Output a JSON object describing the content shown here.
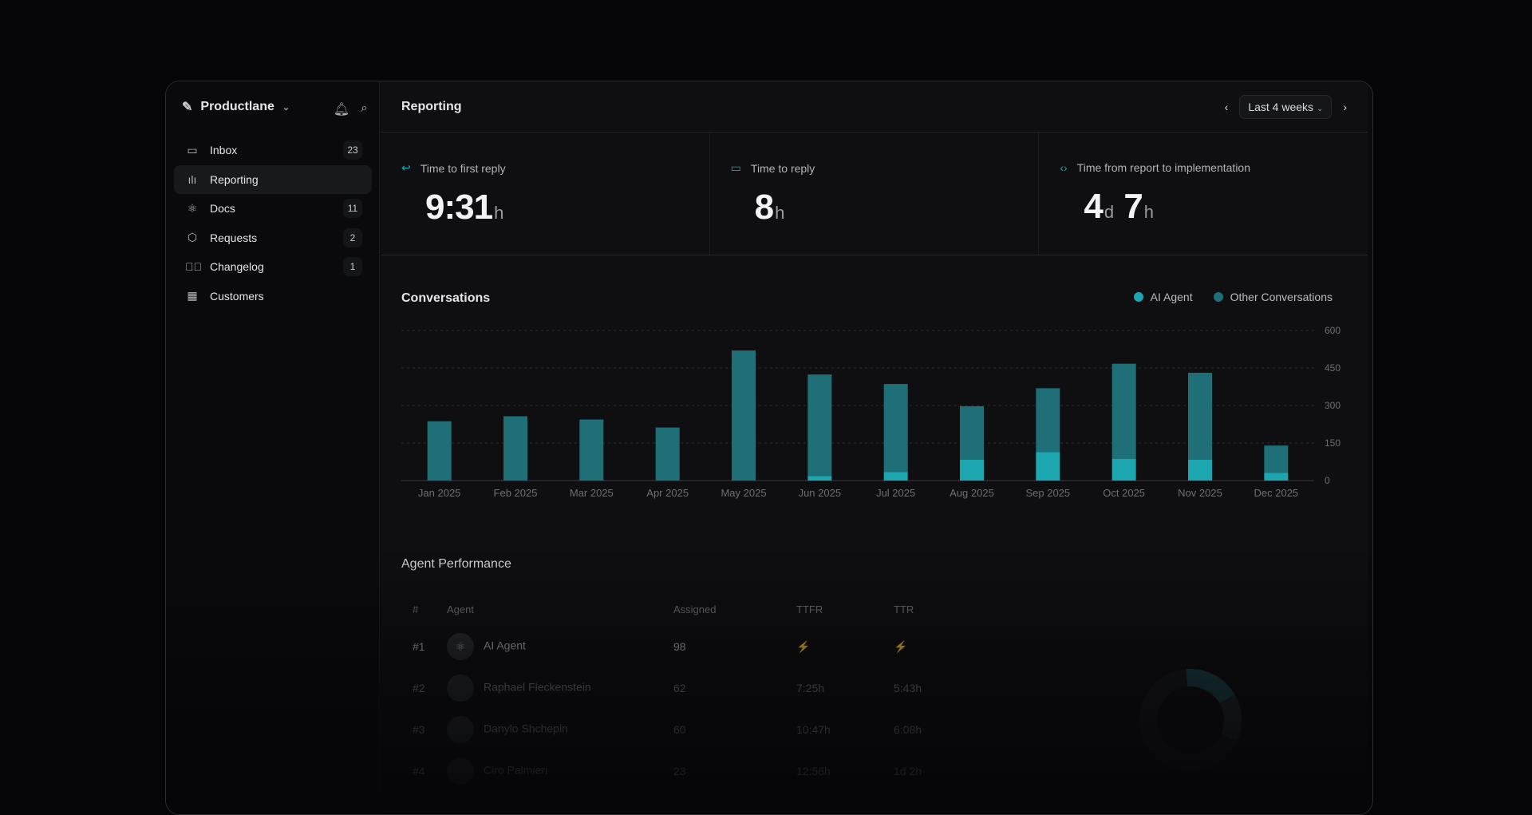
{
  "sidebar": {
    "workspace": "Productlane",
    "items": [
      {
        "label": "Inbox",
        "badge": "23",
        "icon": "inbox-icon"
      },
      {
        "label": "Reporting",
        "badge": "",
        "icon": "bar-chart-icon"
      },
      {
        "label": "Docs",
        "badge": "11",
        "icon": "atom-icon"
      },
      {
        "label": "Requests",
        "badge": "2",
        "icon": "cube-icon"
      },
      {
        "label": "Changelog",
        "badge": "1",
        "icon": "check-circle-icon"
      },
      {
        "label": "Customers",
        "badge": "",
        "icon": "building-icon"
      }
    ]
  },
  "header": {
    "title": "Reporting",
    "range": "Last 4 weeks"
  },
  "stats": [
    {
      "label": "Time to first reply",
      "value": "9:31",
      "unit": "h"
    },
    {
      "label": "Time to reply",
      "value": "8",
      "unit": "h"
    },
    {
      "label": "Time from report to implementation",
      "value": "4",
      "unit": "d",
      "value2": "7",
      "unit2": "h"
    }
  ],
  "conversations": {
    "title": "Conversations"
  },
  "colors": {
    "ai": "#1ca6b0",
    "other": "#1e6f78",
    "accent": "#1ca6b0"
  },
  "chart_data": {
    "type": "bar",
    "stacked": true,
    "title": "Conversations",
    "categories": [
      "Jan 2025",
      "Feb 2025",
      "Mar 2025",
      "Apr 2025",
      "May 2025",
      "Jun 2025",
      "Jul 2025",
      "Aug 2025",
      "Sep 2025",
      "Oct 2025",
      "Nov 2025",
      "Dec 2025"
    ],
    "series": [
      {
        "name": "AI Agent",
        "values": [
          0,
          0,
          0,
          0,
          0,
          18,
          34,
          83,
          114,
          87,
          83,
          31
        ]
      },
      {
        "name": "Other Conversations",
        "values": [
          237,
          257,
          244,
          212,
          520,
          406,
          352,
          214,
          255,
          380,
          348,
          109
        ]
      }
    ],
    "yticks": [
      0,
      150,
      300,
      450,
      600
    ],
    "ylim": [
      0,
      600
    ],
    "grid": true,
    "legend": "top-right"
  },
  "agents": {
    "title": "Agent Performance",
    "columns": [
      "#",
      "Agent",
      "Assigned",
      "TTFR",
      "TTR"
    ],
    "rows": [
      {
        "rank": "#1",
        "name": "AI Agent",
        "assigned": "98",
        "ttfr": "⚡",
        "ttr": "⚡"
      },
      {
        "rank": "#2",
        "name": "Raphael Fleckenstein",
        "assigned": "62",
        "ttfr": "7:25h",
        "ttr": "5:43h"
      },
      {
        "rank": "#3",
        "name": "Danylo Shchepin",
        "assigned": "60",
        "ttfr": "10:47h",
        "ttr": "6:08h"
      },
      {
        "rank": "#4",
        "name": "Ciro Palmieri",
        "assigned": "23",
        "ttfr": "12:56h",
        "ttr": "1d 2h"
      }
    ]
  }
}
